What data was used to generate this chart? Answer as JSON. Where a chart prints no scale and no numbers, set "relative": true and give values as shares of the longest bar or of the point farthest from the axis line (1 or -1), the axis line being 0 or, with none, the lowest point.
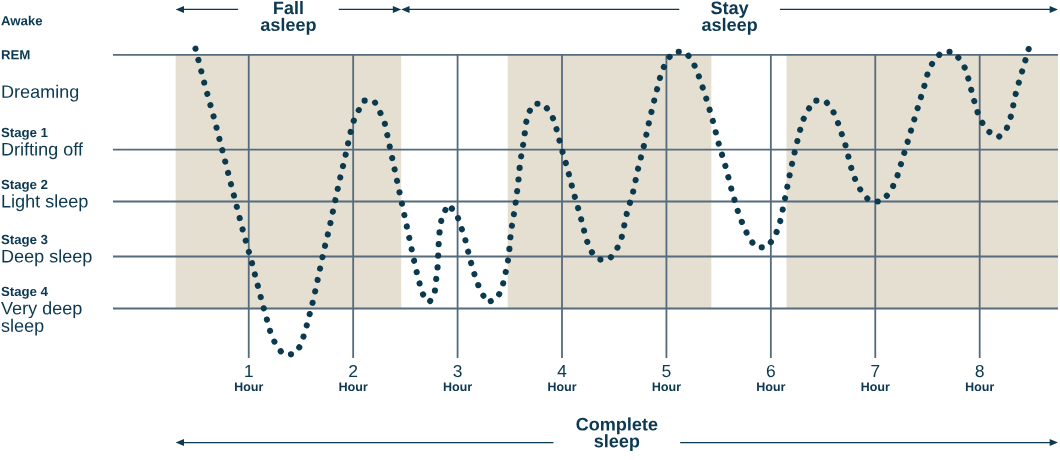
{
  "chart_data": {
    "type": "line",
    "relative": true,
    "x": [
      0.49,
      0.58,
      0.67,
      0.76,
      0.85,
      0.94,
      1.03,
      1.12,
      1.21,
      1.26,
      1.33,
      1.43,
      1.5,
      1.56,
      1.62,
      1.67,
      1.72,
      1.77,
      1.82,
      1.87,
      1.92,
      1.97,
      2.0,
      2.04,
      2.1,
      2.2,
      2.26,
      2.3,
      2.35,
      2.4,
      2.45,
      2.5,
      2.55,
      2.6,
      2.63,
      2.66,
      2.73,
      2.78,
      2.81,
      2.82,
      2.83,
      2.85,
      2.91,
      2.99,
      3.03,
      3.07,
      3.12,
      3.18,
      3.22,
      3.28,
      3.37,
      3.42,
      3.45,
      3.49,
      3.51,
      3.55,
      3.58,
      3.6,
      3.64,
      3.65,
      3.68,
      3.73,
      3.82,
      3.89,
      3.93,
      3.99,
      4.05,
      4.11,
      4.17,
      4.23,
      4.27,
      4.35,
      4.45,
      4.52,
      4.57,
      4.62,
      4.68,
      4.73,
      4.79,
      4.84,
      4.89,
      4.95,
      5.0,
      5.07,
      5.18,
      5.25,
      5.3,
      5.37,
      5.44,
      5.5,
      5.57,
      5.63,
      5.7,
      5.74,
      5.79,
      5.86,
      5.96,
      6.03,
      6.08,
      6.13,
      6.17,
      6.22,
      6.27,
      6.3,
      6.34,
      6.41,
      6.52,
      6.59,
      6.64,
      6.71,
      6.77,
      6.81,
      6.87,
      6.95,
      7.06,
      7.14,
      7.2,
      7.27,
      7.34,
      7.41,
      7.48,
      7.51,
      7.56,
      7.64,
      7.75,
      7.82,
      7.87,
      7.9,
      7.97,
      8.02,
      8.08,
      8.18,
      8.26,
      8.3,
      8.35,
      8.41,
      8.47
    ],
    "series": [
      {
        "color": "#0b3a4e",
        "values": [
          1.0,
          0.88,
          0.77,
          0.65,
          0.53,
          0.41,
          0.3,
          0.18,
          0.07,
          0.03,
          0.0,
          0.0,
          0.03,
          0.1,
          0.18,
          0.26,
          0.34,
          0.41,
          0.49,
          0.57,
          0.64,
          0.72,
          0.76,
          0.79,
          0.83,
          0.83,
          0.79,
          0.76,
          0.68,
          0.6,
          0.52,
          0.44,
          0.36,
          0.28,
          0.24,
          0.2,
          0.17,
          0.2,
          0.29,
          0.37,
          0.41,
          0.45,
          0.49,
          0.46,
          0.42,
          0.38,
          0.31,
          0.24,
          0.21,
          0.17,
          0.18,
          0.21,
          0.25,
          0.32,
          0.4,
          0.48,
          0.56,
          0.63,
          0.71,
          0.75,
          0.79,
          0.82,
          0.82,
          0.79,
          0.76,
          0.68,
          0.61,
          0.53,
          0.46,
          0.38,
          0.34,
          0.31,
          0.31,
          0.34,
          0.38,
          0.46,
          0.53,
          0.61,
          0.69,
          0.77,
          0.84,
          0.92,
          0.96,
          0.99,
          0.99,
          0.96,
          0.92,
          0.85,
          0.77,
          0.69,
          0.61,
          0.53,
          0.45,
          0.42,
          0.38,
          0.35,
          0.35,
          0.38,
          0.42,
          0.5,
          0.57,
          0.65,
          0.72,
          0.76,
          0.79,
          0.83,
          0.83,
          0.8,
          0.76,
          0.69,
          0.61,
          0.57,
          0.53,
          0.5,
          0.5,
          0.53,
          0.57,
          0.65,
          0.73,
          0.81,
          0.89,
          0.93,
          0.96,
          0.99,
          0.99,
          0.96,
          0.93,
          0.89,
          0.8,
          0.76,
          0.73,
          0.71,
          0.74,
          0.78,
          0.86,
          0.93,
          1.0
        ]
      }
    ],
    "line_style": "dotted",
    "xlim": [
      -0.3,
      8.75
    ],
    "xticks": [
      {
        "value": 1,
        "label": "1\nHour"
      },
      {
        "value": 2,
        "label": "2\nHour"
      },
      {
        "value": 3,
        "label": "3\nHour"
      },
      {
        "value": 4,
        "label": "4\nHour"
      },
      {
        "value": 5,
        "label": "5\nHour"
      },
      {
        "value": 6,
        "label": "6\nHour"
      },
      {
        "value": 7,
        "label": "7\nHour"
      },
      {
        "value": 8,
        "label": "8\nHour"
      }
    ],
    "tick_labels": "x",
    "grid": "x",
    "ref_lines": [
      {
        "axis": "y",
        "value": 0.98,
        "label": "REM\nDreaming",
        "color": "#566b7c"
      },
      {
        "axis": "y",
        "value": 0.67,
        "label": "Stage 1\nDrifting off",
        "color": "#566b7c"
      },
      {
        "axis": "y",
        "value": 0.5,
        "label": "Stage 2\nLight sleep",
        "color": "#566b7c"
      },
      {
        "axis": "y",
        "value": 0.32,
        "label": "Stage 3\nDeep sleep",
        "color": "#566b7c"
      },
      {
        "axis": "y",
        "value": 0.15,
        "label": "Stage 4\nVery deep\nsleep",
        "color": "#566b7c"
      }
    ],
    "bands": [
      {
        "axis": "x",
        "from": 0.3,
        "to": 2.46,
        "color": "#e5dfd2"
      },
      {
        "axis": "x",
        "from": 3.48,
        "to": 5.43,
        "color": "#e5dfd2"
      },
      {
        "axis": "x",
        "from": 6.15,
        "to": 8.75,
        "color": "#e5dfd2"
      }
    ],
    "annotations": [
      "Awake",
      "Fall\nasleep",
      "Stay\nasleep",
      "Complete\nsleep"
    ]
  }
}
